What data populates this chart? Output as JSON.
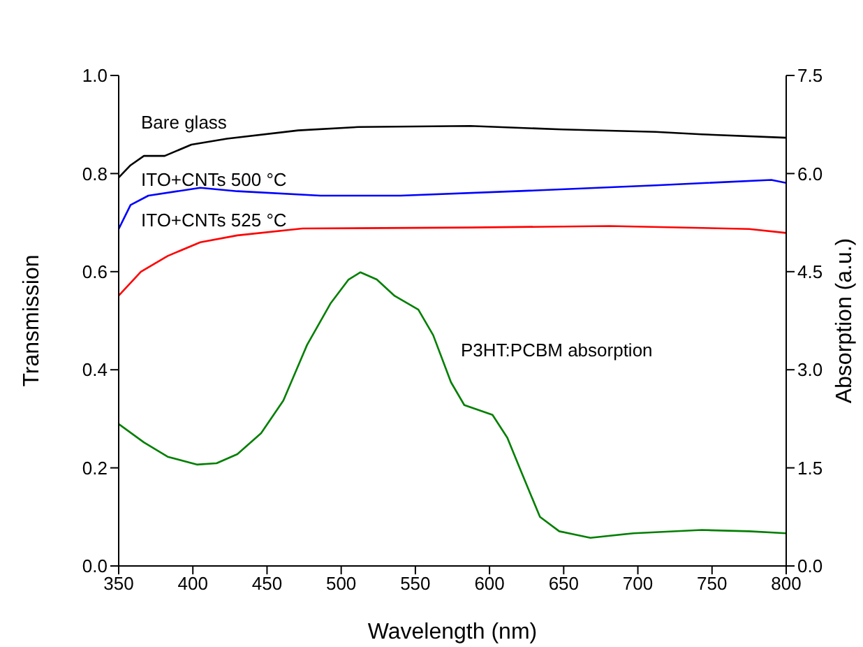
{
  "chart_data": {
    "type": "line",
    "xlabel": "Wavelength (nm)",
    "ylabel": "Transmission",
    "y2label": "Absorption (a.u.)",
    "xlim": [
      350,
      800
    ],
    "xticks": [
      350,
      400,
      450,
      500,
      550,
      600,
      650,
      700,
      750,
      800
    ],
    "ylim": [
      0,
      1
    ],
    "yticks": [
      {
        "value": 0,
        "label": "0.0"
      },
      {
        "value": 0.2,
        "label": "0.2"
      },
      {
        "value": 0.4,
        "label": "0.4"
      },
      {
        "value": 0.6,
        "label": "0.6"
      },
      {
        "value": 0.8,
        "label": "0.8"
      },
      {
        "value": 1,
        "label": "1.0"
      }
    ],
    "y2lim": [
      0,
      7.5
    ],
    "y2ticks": [
      {
        "value": 0,
        "label": "0.0"
      },
      {
        "value": 1.5,
        "label": "1.5"
      },
      {
        "value": 3,
        "label": "3.0"
      },
      {
        "value": 4.5,
        "label": "4.5"
      },
      {
        "value": 6,
        "label": "6.0"
      },
      {
        "value": 7.5,
        "label": "7.5"
      }
    ],
    "marker": "none",
    "line_style": "solid",
    "series": [
      {
        "name": "Bare glass",
        "color": "#000000",
        "x": [
          350,
          358,
          367,
          381,
          399,
          423,
          471,
          512,
          587,
          649,
          712,
          743,
          800
        ],
        "values": [
          0.792,
          0.817,
          0.836,
          0.836,
          0.859,
          0.871,
          0.888,
          0.895,
          0.897,
          0.89,
          0.885,
          0.88,
          0.873
        ]
      },
      {
        "name": "ITO+CNTs 500 °C",
        "color": "#0000ff",
        "x": [
          350,
          358,
          370,
          405,
          430,
          486,
          540,
          618,
          712,
          790,
          800
        ],
        "values": [
          0.687,
          0.736,
          0.755,
          0.771,
          0.764,
          0.755,
          0.755,
          0.764,
          0.776,
          0.787,
          0.781
        ]
      },
      {
        "name": "ITO+CNTs 525 °C",
        "color": "#ff0000",
        "x": [
          350,
          365,
          383,
          405,
          430,
          474,
          587,
          681,
          775,
          800
        ],
        "values": [
          0.551,
          0.6,
          0.632,
          0.66,
          0.674,
          0.688,
          0.69,
          0.693,
          0.687,
          0.679
        ]
      },
      {
        "name": "P3HT:PCBM absorption",
        "color": "#007f00",
        "axis": "y2",
        "x": [
          350,
          367,
          383,
          403,
          416,
          430,
          446,
          461,
          477,
          493,
          505,
          513,
          524,
          536,
          552,
          562,
          574,
          583,
          602,
          612,
          621,
          634,
          647,
          668,
          697,
          743,
          775,
          800
        ],
        "values": [
          2.17,
          1.89,
          1.67,
          1.55,
          1.57,
          1.71,
          2.03,
          2.53,
          3.38,
          4.02,
          4.38,
          4.49,
          4.38,
          4.13,
          3.92,
          3.53,
          2.81,
          2.46,
          2.31,
          1.96,
          1.46,
          0.75,
          0.53,
          0.43,
          0.5,
          0.55,
          0.53,
          0.5
        ]
      }
    ]
  }
}
